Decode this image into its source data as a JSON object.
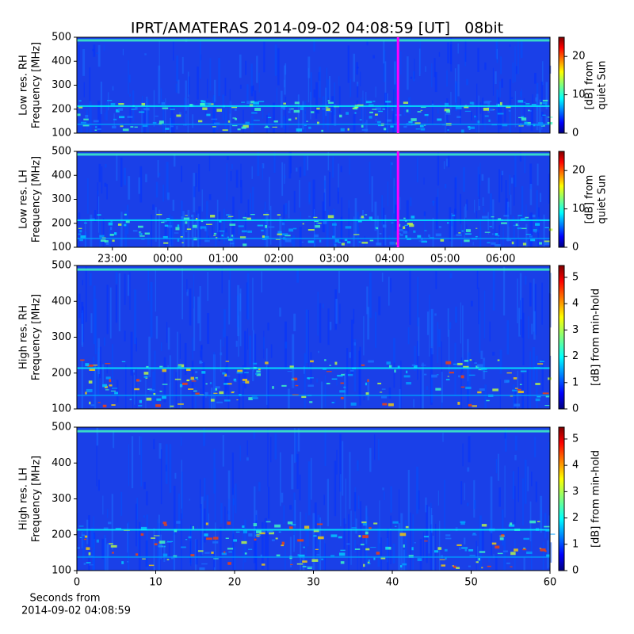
{
  "title": "IPRT/AMATERAS 2014-09-02 04:08:59 [UT]   08bit",
  "chart_data": [
    {
      "type": "spectrogram",
      "ylabel": [
        "Low res. RH",
        "Frequency [MHz]"
      ],
      "ylim": [
        100,
        500
      ],
      "yticks": [
        100,
        200,
        300,
        400,
        500
      ],
      "xlim": [
        22.36,
        30.89
      ],
      "xticks": [],
      "marker_x": 28.15,
      "marker_color": "#ff00ff",
      "colorbar_label": [
        "[dB] from",
        "quiet Sun"
      ],
      "clim": [
        0,
        25
      ],
      "cticks": [
        0,
        10,
        20
      ],
      "colormap": "jet"
    },
    {
      "type": "spectrogram",
      "ylabel": [
        "Low res. LH",
        "Frequency [MHz]"
      ],
      "ylim": [
        100,
        500
      ],
      "yticks": [
        100,
        200,
        300,
        400,
        500
      ],
      "xlim": [
        22.36,
        30.89
      ],
      "xticks": [
        {
          "value": 23,
          "label": "23:00"
        },
        {
          "value": 24,
          "label": "00:00"
        },
        {
          "value": 25,
          "label": "01:00"
        },
        {
          "value": 26,
          "label": "02:00"
        },
        {
          "value": 27,
          "label": "03:00"
        },
        {
          "value": 28,
          "label": "04:00"
        },
        {
          "value": 29,
          "label": "05:00"
        },
        {
          "value": 30,
          "label": "06:00"
        }
      ],
      "marker_x": 28.15,
      "marker_color": "#ff00ff",
      "colorbar_label": [
        "[dB] from",
        "quiet Sun"
      ],
      "clim": [
        0,
        25
      ],
      "cticks": [
        0,
        10,
        20
      ],
      "colormap": "jet"
    },
    {
      "type": "spectrogram",
      "ylabel": [
        "High res. RH",
        "Frequency [MHz]"
      ],
      "ylim": [
        100,
        500
      ],
      "yticks": [
        100,
        200,
        300,
        400,
        500
      ],
      "xlim": [
        0,
        60
      ],
      "xticks": [],
      "colorbar_label": [
        "[dB] from min-hold"
      ],
      "clim": [
        0,
        5.45
      ],
      "cticks": [
        0,
        1,
        2,
        3,
        4,
        5
      ],
      "colormap": "jet"
    },
    {
      "type": "spectrogram",
      "ylabel": [
        "High res. LH",
        "Frequency [MHz]"
      ],
      "ylim": [
        100,
        500
      ],
      "yticks": [
        100,
        200,
        300,
        400,
        500
      ],
      "xlim": [
        0,
        60
      ],
      "xticks": [
        0,
        10,
        20,
        30,
        40,
        50,
        60
      ],
      "xlabel": [
        "Seconds from",
        "2014-09-02 04:08:59"
      ],
      "colorbar_label": [
        "[dB] from min-hold"
      ],
      "clim": [
        0,
        5.45
      ],
      "cticks": [
        0,
        1,
        2,
        3,
        4,
        5
      ],
      "colormap": "jet"
    }
  ]
}
